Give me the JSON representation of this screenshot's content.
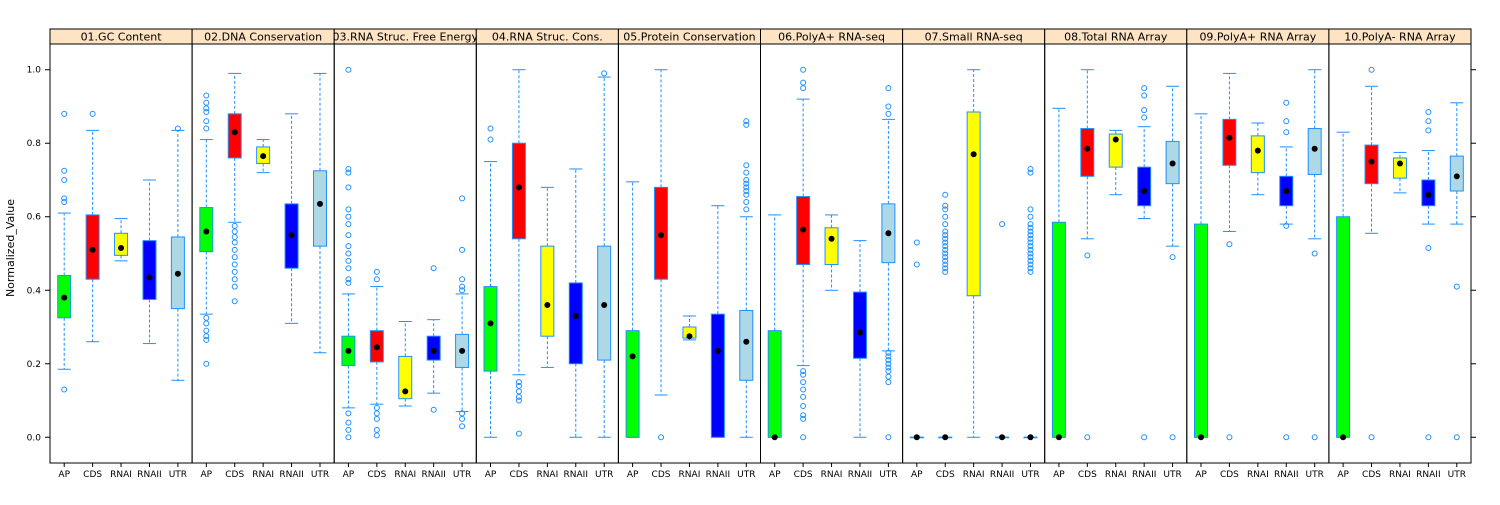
{
  "chart_data": {
    "type": "boxplot",
    "ylabel": "Normalized_Value",
    "ylim": [
      -0.07,
      1.07
    ],
    "yticks": [
      "0.0",
      "0.2",
      "0.4",
      "0.6",
      "0.8",
      "1.0"
    ],
    "ytick_values": [
      0,
      0.2,
      0.4,
      0.6,
      0.8,
      1.0
    ],
    "categories": [
      "AP",
      "CDS",
      "RNAI",
      "RNAII",
      "UTR"
    ],
    "category_colors": {
      "AP": "#00ff00",
      "CDS": "#ff0000",
      "RNAI": "#ffff00",
      "RNAII": "#0000ff",
      "UTR": "#add8e6"
    },
    "whisker_color": "#1e90ff",
    "outlier_color": "#1e90ff",
    "median_color": "#000000",
    "strip_color": "#ffe4c4",
    "panels": [
      {
        "title": "01.GC Content",
        "boxes": [
          {
            "category": "AP",
            "q1": 0.325,
            "median": 0.38,
            "q3": 0.44,
            "whisker_low": 0.185,
            "whisker_high": 0.61,
            "outliers": [
              0.13,
              0.64,
              0.65,
              0.7,
              0.725,
              0.88
            ]
          },
          {
            "category": "CDS",
            "q1": 0.43,
            "median": 0.51,
            "q3": 0.605,
            "whisker_low": 0.26,
            "whisker_high": 0.835,
            "outliers": [
              0.88
            ]
          },
          {
            "category": "RNAI",
            "q1": 0.495,
            "median": 0.515,
            "q3": 0.555,
            "whisker_low": 0.48,
            "whisker_high": 0.595,
            "outliers": []
          },
          {
            "category": "RNAII",
            "q1": 0.375,
            "median": 0.435,
            "q3": 0.535,
            "whisker_low": 0.255,
            "whisker_high": 0.7,
            "outliers": []
          },
          {
            "category": "UTR",
            "q1": 0.35,
            "median": 0.445,
            "q3": 0.545,
            "whisker_low": 0.155,
            "whisker_high": 0.835,
            "outliers": [
              0.84
            ]
          }
        ]
      },
      {
        "title": "02.DNA Conservation",
        "boxes": [
          {
            "category": "AP",
            "q1": 0.505,
            "median": 0.56,
            "q3": 0.625,
            "whisker_low": 0.335,
            "whisker_high": 0.81,
            "outliers": [
              0.2,
              0.265,
              0.275,
              0.29,
              0.31,
              0.325,
              0.84,
              0.86,
              0.885,
              0.895,
              0.91,
              0.93
            ]
          },
          {
            "category": "CDS",
            "q1": 0.76,
            "median": 0.83,
            "q3": 0.88,
            "whisker_low": 0.585,
            "whisker_high": 0.99,
            "outliers": [
              0.37,
              0.41,
              0.43,
              0.45,
              0.47,
              0.49,
              0.51,
              0.53,
              0.545,
              0.56,
              0.575
            ]
          },
          {
            "category": "RNAI",
            "q1": 0.745,
            "median": 0.765,
            "q3": 0.79,
            "whisker_low": 0.72,
            "whisker_high": 0.81,
            "outliers": []
          },
          {
            "category": "RNAII",
            "q1": 0.46,
            "median": 0.55,
            "q3": 0.635,
            "whisker_low": 0.31,
            "whisker_high": 0.88,
            "outliers": []
          },
          {
            "category": "UTR",
            "q1": 0.52,
            "median": 0.635,
            "q3": 0.725,
            "whisker_low": 0.23,
            "whisker_high": 0.99,
            "outliers": []
          }
        ]
      },
      {
        "title": "03.RNA Struc. Free Energy",
        "boxes": [
          {
            "category": "AP",
            "q1": 0.195,
            "median": 0.235,
            "q3": 0.275,
            "whisker_low": 0.08,
            "whisker_high": 0.39,
            "outliers": [
              0.0,
              0.02,
              0.04,
              0.065,
              0.42,
              0.43,
              0.46,
              0.48,
              0.5,
              0.52,
              0.55,
              0.58,
              0.6,
              0.62,
              0.68,
              0.72,
              0.73,
              1.0
            ]
          },
          {
            "category": "CDS",
            "q1": 0.205,
            "median": 0.245,
            "q3": 0.29,
            "whisker_low": 0.09,
            "whisker_high": 0.41,
            "outliers": [
              0.005,
              0.02,
              0.05,
              0.065,
              0.08,
              0.43,
              0.45
            ]
          },
          {
            "category": "RNAI",
            "q1": 0.105,
            "median": 0.125,
            "q3": 0.22,
            "whisker_low": 0.085,
            "whisker_high": 0.315,
            "outliers": []
          },
          {
            "category": "RNAII",
            "q1": 0.21,
            "median": 0.235,
            "q3": 0.275,
            "whisker_low": 0.12,
            "whisker_high": 0.32,
            "outliers": [
              0.075,
              0.46
            ]
          },
          {
            "category": "UTR",
            "q1": 0.19,
            "median": 0.235,
            "q3": 0.28,
            "whisker_low": 0.07,
            "whisker_high": 0.39,
            "outliers": [
              0.03,
              0.05,
              0.065,
              0.4,
              0.41,
              0.43,
              0.51,
              0.65
            ]
          }
        ]
      },
      {
        "title": "04.RNA Struc. Cons.",
        "boxes": [
          {
            "category": "AP",
            "q1": 0.18,
            "median": 0.31,
            "q3": 0.41,
            "whisker_low": 0.0,
            "whisker_high": 0.75,
            "outliers": [
              0.81,
              0.84
            ]
          },
          {
            "category": "CDS",
            "q1": 0.54,
            "median": 0.68,
            "q3": 0.8,
            "whisker_low": 0.17,
            "whisker_high": 1.0,
            "outliers": [
              0.01,
              0.1,
              0.11,
              0.125,
              0.14,
              0.15
            ]
          },
          {
            "category": "RNAI",
            "q1": 0.275,
            "median": 0.36,
            "q3": 0.52,
            "whisker_low": 0.19,
            "whisker_high": 0.68,
            "outliers": []
          },
          {
            "category": "RNAII",
            "q1": 0.2,
            "median": 0.33,
            "q3": 0.42,
            "whisker_low": 0.0,
            "whisker_high": 0.73,
            "outliers": []
          },
          {
            "category": "UTR",
            "q1": 0.21,
            "median": 0.36,
            "q3": 0.52,
            "whisker_low": 0.0,
            "whisker_high": 0.98,
            "outliers": [
              0.99
            ]
          }
        ]
      },
      {
        "title": "05.Protein Conservation",
        "boxes": [
          {
            "category": "AP",
            "q1": 0.0,
            "median": 0.22,
            "q3": 0.29,
            "whisker_low": 0.0,
            "whisker_high": 0.695,
            "outliers": []
          },
          {
            "category": "CDS",
            "q1": 0.43,
            "median": 0.55,
            "q3": 0.68,
            "whisker_low": 0.115,
            "whisker_high": 1.0,
            "outliers": [
              0.0
            ]
          },
          {
            "category": "RNAI",
            "q1": 0.27,
            "median": 0.275,
            "q3": 0.3,
            "whisker_low": 0.265,
            "whisker_high": 0.33,
            "outliers": []
          },
          {
            "category": "RNAII",
            "q1": 0.0,
            "median": 0.235,
            "q3": 0.335,
            "whisker_low": 0.0,
            "whisker_high": 0.63,
            "outliers": []
          },
          {
            "category": "UTR",
            "q1": 0.155,
            "median": 0.26,
            "q3": 0.345,
            "whisker_low": 0.0,
            "whisker_high": 0.6,
            "outliers": [
              0.62,
              0.64,
              0.66,
              0.67,
              0.68,
              0.69,
              0.7,
              0.72,
              0.74,
              0.85,
              0.86
            ]
          }
        ]
      },
      {
        "title": "06.PolyA+ RNA-seq",
        "boxes": [
          {
            "category": "AP",
            "q1": 0.0,
            "median": 0.0,
            "q3": 0.29,
            "whisker_low": 0.0,
            "whisker_high": 0.605,
            "outliers": []
          },
          {
            "category": "CDS",
            "q1": 0.47,
            "median": 0.565,
            "q3": 0.655,
            "whisker_low": 0.195,
            "whisker_high": 0.92,
            "outliers": [
              0.0,
              0.05,
              0.06,
              0.085,
              0.11,
              0.13,
              0.15,
              0.17,
              0.18,
              0.95,
              0.965,
              1.0
            ]
          },
          {
            "category": "RNAI",
            "q1": 0.47,
            "median": 0.54,
            "q3": 0.57,
            "whisker_low": 0.4,
            "whisker_high": 0.605,
            "outliers": []
          },
          {
            "category": "RNAII",
            "q1": 0.215,
            "median": 0.285,
            "q3": 0.395,
            "whisker_low": 0.0,
            "whisker_high": 0.535,
            "outliers": []
          },
          {
            "category": "UTR",
            "q1": 0.475,
            "median": 0.555,
            "q3": 0.635,
            "whisker_low": 0.235,
            "whisker_high": 0.865,
            "outliers": [
              0.0,
              0.15,
              0.165,
              0.18,
              0.19,
              0.2,
              0.21,
              0.22,
              0.23,
              0.88,
              0.9,
              0.95
            ]
          }
        ]
      },
      {
        "title": "07.Small RNA-seq",
        "boxes": [
          {
            "category": "AP",
            "q1": 0.0,
            "median": 0.0,
            "q3": 0.0,
            "whisker_low": 0.0,
            "whisker_high": 0.0,
            "outliers": [
              0.47,
              0.53
            ]
          },
          {
            "category": "CDS",
            "q1": 0.0,
            "median": 0.0,
            "q3": 0.0,
            "whisker_low": 0.0,
            "whisker_high": 0.0,
            "outliers": [
              0.45,
              0.46,
              0.47,
              0.48,
              0.49,
              0.5,
              0.51,
              0.52,
              0.53,
              0.54,
              0.55,
              0.56,
              0.58,
              0.6,
              0.62,
              0.63,
              0.66
            ]
          },
          {
            "category": "RNAI",
            "q1": 0.385,
            "median": 0.77,
            "q3": 0.885,
            "whisker_low": 0.0,
            "whisker_high": 1.0,
            "outliers": []
          },
          {
            "category": "RNAII",
            "q1": 0.0,
            "median": 0.0,
            "q3": 0.0,
            "whisker_low": 0.0,
            "whisker_high": 0.0,
            "outliers": [
              0.58
            ]
          },
          {
            "category": "UTR",
            "q1": 0.0,
            "median": 0.0,
            "q3": 0.0,
            "whisker_low": 0.0,
            "whisker_high": 0.0,
            "outliers": [
              0.45,
              0.46,
              0.47,
              0.48,
              0.49,
              0.5,
              0.51,
              0.52,
              0.53,
              0.54,
              0.55,
              0.56,
              0.57,
              0.58,
              0.6,
              0.62,
              0.72,
              0.73
            ]
          }
        ]
      },
      {
        "title": "08.Total RNA Array",
        "boxes": [
          {
            "category": "AP",
            "q1": 0.0,
            "median": 0.0,
            "q3": 0.585,
            "whisker_low": 0.0,
            "whisker_high": 0.895,
            "outliers": []
          },
          {
            "category": "CDS",
            "q1": 0.71,
            "median": 0.785,
            "q3": 0.84,
            "whisker_low": 0.54,
            "whisker_high": 1.0,
            "outliers": [
              0.0,
              0.495
            ]
          },
          {
            "category": "RNAI",
            "q1": 0.735,
            "median": 0.81,
            "q3": 0.825,
            "whisker_low": 0.66,
            "whisker_high": 0.835,
            "outliers": []
          },
          {
            "category": "RNAII",
            "q1": 0.63,
            "median": 0.67,
            "q3": 0.735,
            "whisker_low": 0.595,
            "whisker_high": 0.845,
            "outliers": [
              0.0,
              0.87,
              0.89,
              0.93,
              0.95
            ]
          },
          {
            "category": "UTR",
            "q1": 0.69,
            "median": 0.745,
            "q3": 0.805,
            "whisker_low": 0.52,
            "whisker_high": 0.955,
            "outliers": [
              0.0,
              0.49
            ]
          }
        ]
      },
      {
        "title": "09.PolyA+ RNA Array",
        "boxes": [
          {
            "category": "AP",
            "q1": 0.0,
            "median": 0.0,
            "q3": 0.58,
            "whisker_low": 0.0,
            "whisker_high": 0.88,
            "outliers": []
          },
          {
            "category": "CDS",
            "q1": 0.74,
            "median": 0.815,
            "q3": 0.865,
            "whisker_low": 0.56,
            "whisker_high": 0.99,
            "outliers": [
              0.0,
              0.525
            ]
          },
          {
            "category": "RNAI",
            "q1": 0.72,
            "median": 0.78,
            "q3": 0.82,
            "whisker_low": 0.66,
            "whisker_high": 0.855,
            "outliers": []
          },
          {
            "category": "RNAII",
            "q1": 0.63,
            "median": 0.67,
            "q3": 0.71,
            "whisker_low": 0.58,
            "whisker_high": 0.79,
            "outliers": [
              0.0,
              0.575,
              0.83,
              0.86,
              0.91
            ]
          },
          {
            "category": "UTR",
            "q1": 0.715,
            "median": 0.785,
            "q3": 0.84,
            "whisker_low": 0.54,
            "whisker_high": 1.0,
            "outliers": [
              0.0,
              0.5
            ]
          }
        ]
      },
      {
        "title": "10.PolyA- RNA Array",
        "boxes": [
          {
            "category": "AP",
            "q1": 0.0,
            "median": 0.0,
            "q3": 0.6,
            "whisker_low": 0.0,
            "whisker_high": 0.83,
            "outliers": []
          },
          {
            "category": "CDS",
            "q1": 0.69,
            "median": 0.75,
            "q3": 0.795,
            "whisker_low": 0.555,
            "whisker_high": 0.955,
            "outliers": [
              0.0,
              1.0
            ]
          },
          {
            "category": "RNAI",
            "q1": 0.705,
            "median": 0.745,
            "q3": 0.76,
            "whisker_low": 0.665,
            "whisker_high": 0.775,
            "outliers": []
          },
          {
            "category": "RNAII",
            "q1": 0.63,
            "median": 0.66,
            "q3": 0.7,
            "whisker_low": 0.58,
            "whisker_high": 0.78,
            "outliers": [
              0.0,
              0.515,
              0.835,
              0.86,
              0.885
            ]
          },
          {
            "category": "UTR",
            "q1": 0.67,
            "median": 0.71,
            "q3": 0.765,
            "whisker_low": 0.58,
            "whisker_high": 0.91,
            "outliers": [
              0.0,
              0.41
            ]
          }
        ]
      }
    ]
  }
}
